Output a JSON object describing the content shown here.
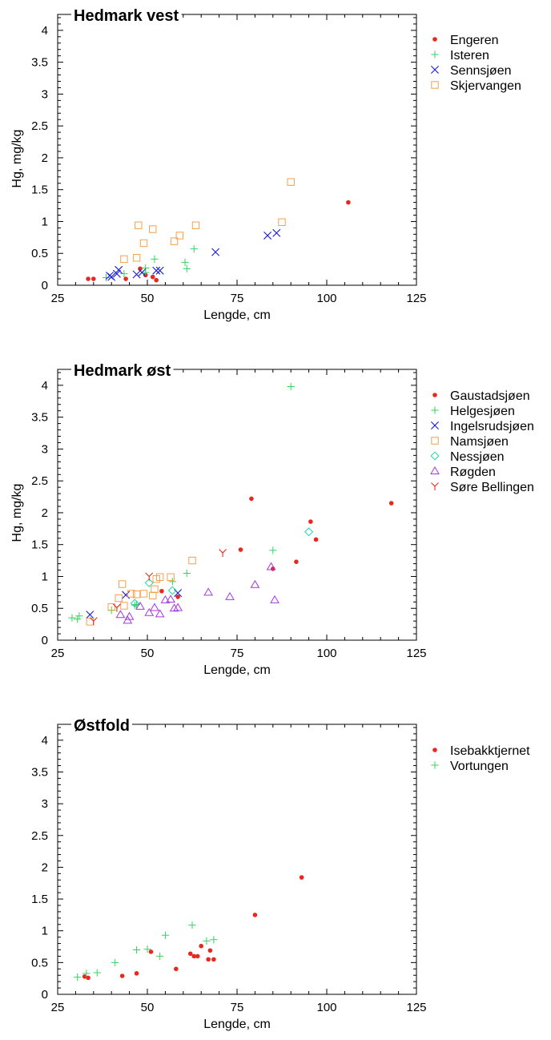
{
  "chart_data": [
    {
      "type": "scatter",
      "title": "Hedmark vest",
      "xlabel": "Lengde, cm",
      "ylabel": "Hg, mg/kg",
      "xlim": [
        25,
        125
      ],
      "ylim": [
        0,
        4.25
      ],
      "xticks": [
        "25",
        "50",
        "75",
        "100",
        "125"
      ],
      "yticks": [
        "0",
        "0.5",
        "1",
        "1.5",
        "2",
        "2.5",
        "3",
        "3.5",
        "4"
      ],
      "legend_position": "right",
      "series": [
        {
          "name": "Engeren",
          "marker": "dot",
          "color": "#e8281e",
          "points": [
            [
              33.5,
              0.1
            ],
            [
              35,
              0.1
            ],
            [
              44,
              0.1
            ],
            [
              48,
              0.26
            ],
            [
              49.5,
              0.16
            ],
            [
              51.5,
              0.13
            ],
            [
              52.5,
              0.08
            ],
            [
              106,
              1.3
            ]
          ]
        },
        {
          "name": "Isteren",
          "marker": "plus",
          "color": "#33d45e",
          "points": [
            [
              38.5,
              0.12
            ],
            [
              43.5,
              0.18
            ],
            [
              49.5,
              0.27
            ],
            [
              49.5,
              0.2
            ],
            [
              52,
              0.41
            ],
            [
              60.5,
              0.36
            ],
            [
              61,
              0.26
            ],
            [
              63,
              0.57
            ]
          ]
        },
        {
          "name": "Sennsjøen",
          "marker": "x",
          "color": "#1a1ad9",
          "points": [
            [
              39.5,
              0.15
            ],
            [
              40,
              0.13
            ],
            [
              41.5,
              0.18
            ],
            [
              42,
              0.24
            ],
            [
              47,
              0.17
            ],
            [
              48.5,
              0.2
            ],
            [
              52.5,
              0.23
            ],
            [
              53.5,
              0.23
            ],
            [
              69,
              0.52
            ],
            [
              83.5,
              0.78
            ],
            [
              86,
              0.82
            ]
          ]
        },
        {
          "name": "Skjervangen",
          "marker": "square",
          "color": "#f5a04a",
          "points": [
            [
              43.5,
              0.41
            ],
            [
              47,
              0.43
            ],
            [
              47.5,
              0.94
            ],
            [
              49,
              0.66
            ],
            [
              51.5,
              0.88
            ],
            [
              57.5,
              0.69
            ],
            [
              59,
              0.78
            ],
            [
              63.5,
              0.94
            ],
            [
              87.5,
              0.99
            ],
            [
              90,
              1.62
            ]
          ]
        }
      ]
    },
    {
      "type": "scatter",
      "title": "Hedmark øst",
      "xlabel": "Lengde, cm",
      "ylabel": "Hg, mg/kg",
      "xlim": [
        25,
        125
      ],
      "ylim": [
        0,
        4.25
      ],
      "xticks": [
        "25",
        "50",
        "75",
        "100",
        "125"
      ],
      "yticks": [
        "0",
        "0.5",
        "1",
        "1.5",
        "2",
        "2.5",
        "3",
        "3.5",
        "4"
      ],
      "legend_position": "right",
      "series": [
        {
          "name": "Gaustadsjøen",
          "marker": "dot",
          "color": "#e8281e",
          "points": [
            [
              54,
              0.77
            ],
            [
              58.5,
              0.68
            ],
            [
              76,
              1.42
            ],
            [
              79,
              2.22
            ],
            [
              85,
              1.12
            ],
            [
              91.5,
              1.23
            ],
            [
              95.5,
              1.86
            ],
            [
              97,
              1.58
            ],
            [
              118,
              2.15
            ]
          ]
        },
        {
          "name": "Helgesjøen",
          "marker": "plus",
          "color": "#33d45e",
          "points": [
            [
              29,
              0.35
            ],
            [
              30.5,
              0.33
            ],
            [
              31,
              0.38
            ],
            [
              40,
              0.47
            ],
            [
              46.5,
              0.55
            ],
            [
              47,
              0.56
            ],
            [
              57,
              0.92
            ],
            [
              61,
              1.05
            ],
            [
              85,
              1.41
            ],
            [
              90,
              3.98
            ]
          ]
        },
        {
          "name": "Ingelsrudsjøen",
          "marker": "x",
          "color": "#1a1ad9",
          "points": [
            [
              34,
              0.4
            ],
            [
              44,
              0.71
            ],
            [
              58.5,
              0.74
            ]
          ]
        },
        {
          "name": "Namsjøen",
          "marker": "square",
          "color": "#f5a04a",
          "points": [
            [
              34,
              0.29
            ],
            [
              40,
              0.52
            ],
            [
              42,
              0.66
            ],
            [
              43,
              0.88
            ],
            [
              43.5,
              0.54
            ],
            [
              45.5,
              0.73
            ],
            [
              47,
              0.72
            ],
            [
              49,
              0.73
            ],
            [
              51.5,
              0.7
            ],
            [
              52,
              0.8
            ],
            [
              52.5,
              0.96
            ],
            [
              53.5,
              0.99
            ],
            [
              56.5,
              0.99
            ],
            [
              62.5,
              1.25
            ]
          ]
        },
        {
          "name": "Nessjøen",
          "marker": "diamond",
          "color": "#1fd6a8",
          "points": [
            [
              46.5,
              0.58
            ],
            [
              50.5,
              0.9
            ],
            [
              57,
              0.78
            ],
            [
              95,
              1.7
            ]
          ]
        },
        {
          "name": "Røgden",
          "marker": "triangle",
          "color": "#a33ae0",
          "points": [
            [
              42.5,
              0.4
            ],
            [
              44.5,
              0.31
            ],
            [
              45,
              0.37
            ],
            [
              48,
              0.53
            ],
            [
              50.5,
              0.43
            ],
            [
              52,
              0.51
            ],
            [
              53.5,
              0.41
            ],
            [
              55,
              0.63
            ],
            [
              56.5,
              0.64
            ],
            [
              57.5,
              0.5
            ],
            [
              58.5,
              0.51
            ],
            [
              67,
              0.75
            ],
            [
              73,
              0.68
            ],
            [
              80,
              0.87
            ],
            [
              84.5,
              1.15
            ],
            [
              85.5,
              0.63
            ]
          ]
        },
        {
          "name": "Søre Bellingen",
          "marker": "y",
          "color": "#e8281e",
          "points": [
            [
              35,
              0.3
            ],
            [
              41.5,
              0.51
            ],
            [
              50.5,
              1.0
            ],
            [
              71,
              1.37
            ]
          ]
        }
      ]
    },
    {
      "type": "scatter",
      "title": "Østfold",
      "xlabel": "Lengde, cm",
      "ylabel": "",
      "xlim": [
        25,
        125
      ],
      "ylim": [
        0,
        4.25
      ],
      "xticks": [
        "25",
        "50",
        "75",
        "100",
        "125"
      ],
      "yticks": [
        "0",
        "0.5",
        "1",
        "1.5",
        "2",
        "2.5",
        "3",
        "3.5",
        "4"
      ],
      "legend_position": "right",
      "series": [
        {
          "name": "Isebakktjernet",
          "marker": "dot",
          "color": "#e8281e",
          "points": [
            [
              32.5,
              0.28
            ],
            [
              33.5,
              0.26
            ],
            [
              43,
              0.29
            ],
            [
              47,
              0.33
            ],
            [
              51,
              0.67
            ],
            [
              58,
              0.4
            ],
            [
              62,
              0.64
            ],
            [
              63,
              0.6
            ],
            [
              64,
              0.6
            ],
            [
              65,
              0.76
            ],
            [
              67,
              0.55
            ],
            [
              67.5,
              0.69
            ],
            [
              68.5,
              0.55
            ],
            [
              80,
              1.25
            ],
            [
              93,
              1.84
            ]
          ]
        },
        {
          "name": "Vortungen",
          "marker": "plus",
          "color": "#33d45e",
          "points": [
            [
              30.5,
              0.27
            ],
            [
              33,
              0.33
            ],
            [
              36,
              0.34
            ],
            [
              41,
              0.5
            ],
            [
              47,
              0.7
            ],
            [
              50,
              0.71
            ],
            [
              53.5,
              0.6
            ],
            [
              55,
              0.93
            ],
            [
              62.5,
              1.09
            ],
            [
              66.5,
              0.84
            ],
            [
              68.5,
              0.86
            ]
          ]
        }
      ]
    }
  ]
}
